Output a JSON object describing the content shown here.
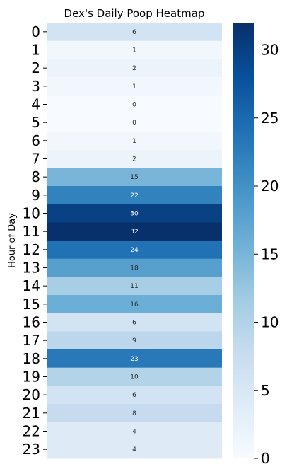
{
  "chart_data": {
    "type": "heatmap",
    "title": "Dex's Daily Poop Heatmap",
    "ylabel": "Hour of Day",
    "xlabel": "",
    "hours": [
      "0",
      "1",
      "2",
      "3",
      "4",
      "5",
      "6",
      "7",
      "8",
      "9",
      "10",
      "11",
      "12",
      "13",
      "14",
      "15",
      "16",
      "17",
      "18",
      "19",
      "20",
      "21",
      "22",
      "23"
    ],
    "values": [
      6,
      1,
      2,
      1,
      0,
      0,
      1,
      2,
      15,
      22,
      30,
      32,
      24,
      18,
      11,
      16,
      6,
      9,
      23,
      10,
      6,
      8,
      4,
      4
    ],
    "vmin": 0,
    "vmax": 32,
    "colormap": "Blues",
    "colorbar_ticks": [
      "0",
      "5",
      "10",
      "15",
      "20",
      "25",
      "30"
    ]
  }
}
